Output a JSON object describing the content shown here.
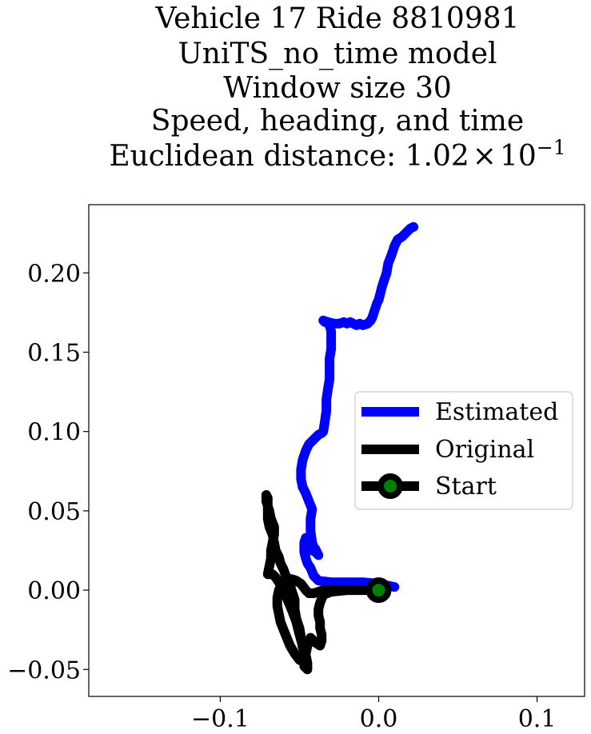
{
  "chart_data": {
    "type": "line",
    "title_lines": [
      "Vehicle 17 Ride 8810981",
      "UniTS_no_time model",
      "Window size 30",
      "Speed, heading, and time"
    ],
    "title_metric_prefix": "Euclidean distance: 1.02",
    "title_metric_times": "×",
    "title_metric_base": "10",
    "title_metric_exp": "−1",
    "xlim": [
      -0.183,
      0.13
    ],
    "ylim": [
      -0.067,
      0.243
    ],
    "xticks": [
      -0.1,
      0.0,
      0.1
    ],
    "xtick_labels": [
      "−0.1",
      "0.0",
      "0.1"
    ],
    "yticks": [
      -0.05,
      0.0,
      0.05,
      0.1,
      0.15,
      0.2
    ],
    "ytick_labels": [
      "−0.05",
      "0.00",
      "0.05",
      "0.10",
      "0.15",
      "0.20"
    ],
    "grid": false,
    "legend_position": "center-right",
    "series": [
      {
        "name": "Estimated",
        "color": "#0000ff",
        "x": [
          0.01,
          0.0,
          -0.01,
          -0.02,
          -0.03,
          -0.038,
          -0.041,
          -0.043,
          -0.045,
          -0.046,
          -0.047,
          -0.047,
          -0.046,
          -0.045,
          -0.044,
          -0.043,
          -0.042,
          -0.04,
          -0.039,
          -0.038,
          -0.04,
          -0.042,
          -0.043,
          -0.043,
          -0.042,
          -0.044,
          -0.046,
          -0.048,
          -0.049,
          -0.049,
          -0.048,
          -0.046,
          -0.044,
          -0.042,
          -0.04,
          -0.038,
          -0.036,
          -0.035,
          -0.034,
          -0.033,
          -0.033,
          -0.032,
          -0.031,
          -0.031,
          -0.031,
          -0.03,
          -0.03,
          -0.03,
          -0.031,
          -0.033,
          -0.034,
          -0.035,
          -0.032,
          -0.028,
          -0.025,
          -0.022,
          -0.02,
          -0.018,
          -0.016,
          -0.014,
          -0.012,
          -0.01,
          -0.007,
          -0.005,
          -0.004,
          -0.003,
          -0.002,
          -0.001,
          0.0,
          0.001,
          0.002,
          0.003,
          0.004,
          0.005,
          0.006,
          0.008,
          0.01,
          0.012,
          0.015,
          0.018,
          0.02,
          0.022
        ],
        "y": [
          0.002,
          0.004,
          0.005,
          0.005,
          0.005,
          0.006,
          0.009,
          0.014,
          0.017,
          0.02,
          0.024,
          0.03,
          0.033,
          0.03,
          0.027,
          0.025,
          0.028,
          0.026,
          0.024,
          0.022,
          0.024,
          0.03,
          0.037,
          0.045,
          0.051,
          0.056,
          0.061,
          0.065,
          0.07,
          0.076,
          0.082,
          0.088,
          0.092,
          0.094,
          0.096,
          0.098,
          0.099,
          0.1,
          0.106,
          0.113,
          0.12,
          0.127,
          0.133,
          0.14,
          0.146,
          0.152,
          0.158,
          0.163,
          0.167,
          0.169,
          0.169,
          0.17,
          0.169,
          0.168,
          0.168,
          0.169,
          0.168,
          0.169,
          0.168,
          0.167,
          0.168,
          0.167,
          0.168,
          0.17,
          0.172,
          0.175,
          0.178,
          0.181,
          0.183,
          0.187,
          0.191,
          0.194,
          0.197,
          0.2,
          0.206,
          0.211,
          0.217,
          0.221,
          0.223,
          0.226,
          0.228,
          0.229
        ]
      },
      {
        "name": "Original",
        "color": "#000000",
        "x": [
          0.0,
          -0.01,
          -0.02,
          -0.03,
          -0.035,
          -0.037,
          -0.038,
          -0.038,
          -0.037,
          -0.037,
          -0.036,
          -0.036,
          -0.037,
          -0.04,
          -0.043,
          -0.045,
          -0.046,
          -0.047,
          -0.047,
          -0.045,
          -0.045,
          -0.046,
          -0.048,
          -0.049,
          -0.05,
          -0.052,
          -0.053,
          -0.053,
          -0.055,
          -0.056,
          -0.058,
          -0.059,
          -0.06,
          -0.062,
          -0.063,
          -0.065,
          -0.066,
          -0.067,
          -0.069,
          -0.07,
          -0.07,
          -0.07,
          -0.07,
          -0.071,
          -0.071,
          -0.069,
          -0.068,
          -0.066,
          -0.066,
          -0.067,
          -0.068,
          -0.068,
          -0.069,
          -0.07,
          -0.067,
          -0.065,
          -0.063,
          -0.06,
          -0.058,
          -0.055,
          -0.052,
          -0.05,
          -0.048,
          -0.046,
          -0.046,
          -0.047,
          -0.05,
          -0.053,
          -0.056,
          -0.058,
          -0.06,
          -0.062,
          -0.063,
          -0.064,
          -0.064,
          -0.063,
          -0.061,
          -0.058,
          -0.055,
          -0.052,
          -0.049,
          -0.046,
          -0.044,
          -0.041,
          -0.038,
          -0.035,
          -0.03,
          -0.025,
          -0.02,
          -0.015,
          -0.01,
          -0.005,
          0.0
        ],
        "y": [
          0.0,
          0.0,
          0.0,
          -0.001,
          -0.003,
          -0.008,
          -0.012,
          -0.016,
          -0.02,
          -0.024,
          -0.028,
          -0.032,
          -0.035,
          -0.033,
          -0.03,
          -0.035,
          -0.04,
          -0.045,
          -0.048,
          -0.05,
          -0.046,
          -0.041,
          -0.036,
          -0.03,
          -0.024,
          -0.018,
          -0.012,
          -0.006,
          0.0,
          0.004,
          0.008,
          0.01,
          0.013,
          0.017,
          0.021,
          0.025,
          0.03,
          0.035,
          0.04,
          0.045,
          0.05,
          0.055,
          0.058,
          0.06,
          0.056,
          0.05,
          0.045,
          0.04,
          0.035,
          0.03,
          0.025,
          0.02,
          0.015,
          0.01,
          0.01,
          0.008,
          0.005,
          0.0,
          -0.005,
          -0.012,
          -0.02,
          -0.028,
          -0.035,
          -0.04,
          -0.043,
          -0.045,
          -0.044,
          -0.04,
          -0.035,
          -0.03,
          -0.025,
          -0.02,
          -0.015,
          -0.01,
          -0.005,
          0.0,
          0.004,
          0.006,
          0.007,
          0.006,
          0.004,
          0.0,
          -0.002,
          -0.002,
          -0.001,
          0.0,
          0.0,
          0.0,
          0.0,
          0.0,
          0.0,
          0.0,
          0.0
        ]
      }
    ],
    "start_point": {
      "name": "Start",
      "x": 0.0,
      "y": 0.0,
      "marker_face": "#008000",
      "marker_edge": "#000000"
    },
    "legend": [
      {
        "label": "Estimated",
        "color": "#0000ff",
        "marker": false
      },
      {
        "label": "Original",
        "color": "#000000",
        "marker": false
      },
      {
        "label": "Start",
        "color": "#000000",
        "marker": true,
        "marker_face": "#008000"
      }
    ]
  }
}
